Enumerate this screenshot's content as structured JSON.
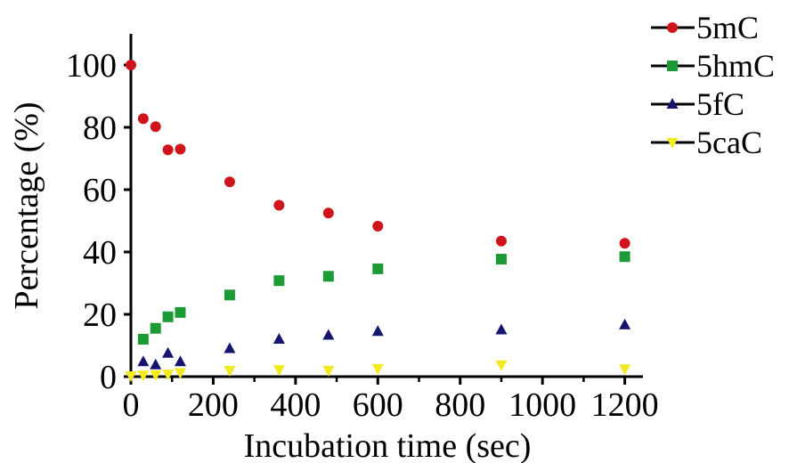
{
  "chart_data": {
    "type": "scatter",
    "title": "",
    "xlabel": "Incubation time (sec)",
    "ylabel": "Percentage (%)",
    "xlim": [
      0,
      1250
    ],
    "ylim": [
      0,
      110
    ],
    "xticks": [
      0,
      200,
      400,
      600,
      800,
      1000,
      1200
    ],
    "yticks": [
      0,
      20,
      40,
      60,
      80,
      100
    ],
    "grid": false,
    "legend_position": "top-right",
    "series": [
      {
        "name": "5mC",
        "marker": "circle",
        "color": "#d0141c",
        "x": [
          0,
          30,
          60,
          90,
          120,
          240,
          360,
          480,
          600,
          900,
          1200
        ],
        "values": [
          100,
          82.8,
          80.2,
          72.8,
          73.0,
          62.5,
          55.0,
          52.5,
          48.3,
          43.5,
          42.8
        ]
      },
      {
        "name": "5hmC",
        "marker": "square",
        "color": "#1c9a35",
        "x": [
          30,
          60,
          90,
          120,
          240,
          360,
          480,
          600,
          900,
          1200
        ],
        "values": [
          12.0,
          15.5,
          19.2,
          20.6,
          26.2,
          30.8,
          32.2,
          34.6,
          37.7,
          38.5
        ]
      },
      {
        "name": "5fC",
        "marker": "triangle-up",
        "color": "#14166e",
        "x": [
          30,
          60,
          90,
          120,
          240,
          360,
          480,
          600,
          900,
          1200
        ],
        "values": [
          4.8,
          3.8,
          7.5,
          4.8,
          9.0,
          12.0,
          13.3,
          14.5,
          15.0,
          16.6
        ]
      },
      {
        "name": "5caC",
        "marker": "triangle-down",
        "color": "#f2ea1e",
        "x": [
          0,
          30,
          60,
          90,
          120,
          240,
          360,
          480,
          600,
          900,
          1200
        ],
        "values": [
          0.3,
          0.5,
          0.6,
          0.8,
          1.3,
          2.0,
          2.2,
          2.0,
          2.6,
          3.8,
          2.5
        ]
      }
    ]
  }
}
